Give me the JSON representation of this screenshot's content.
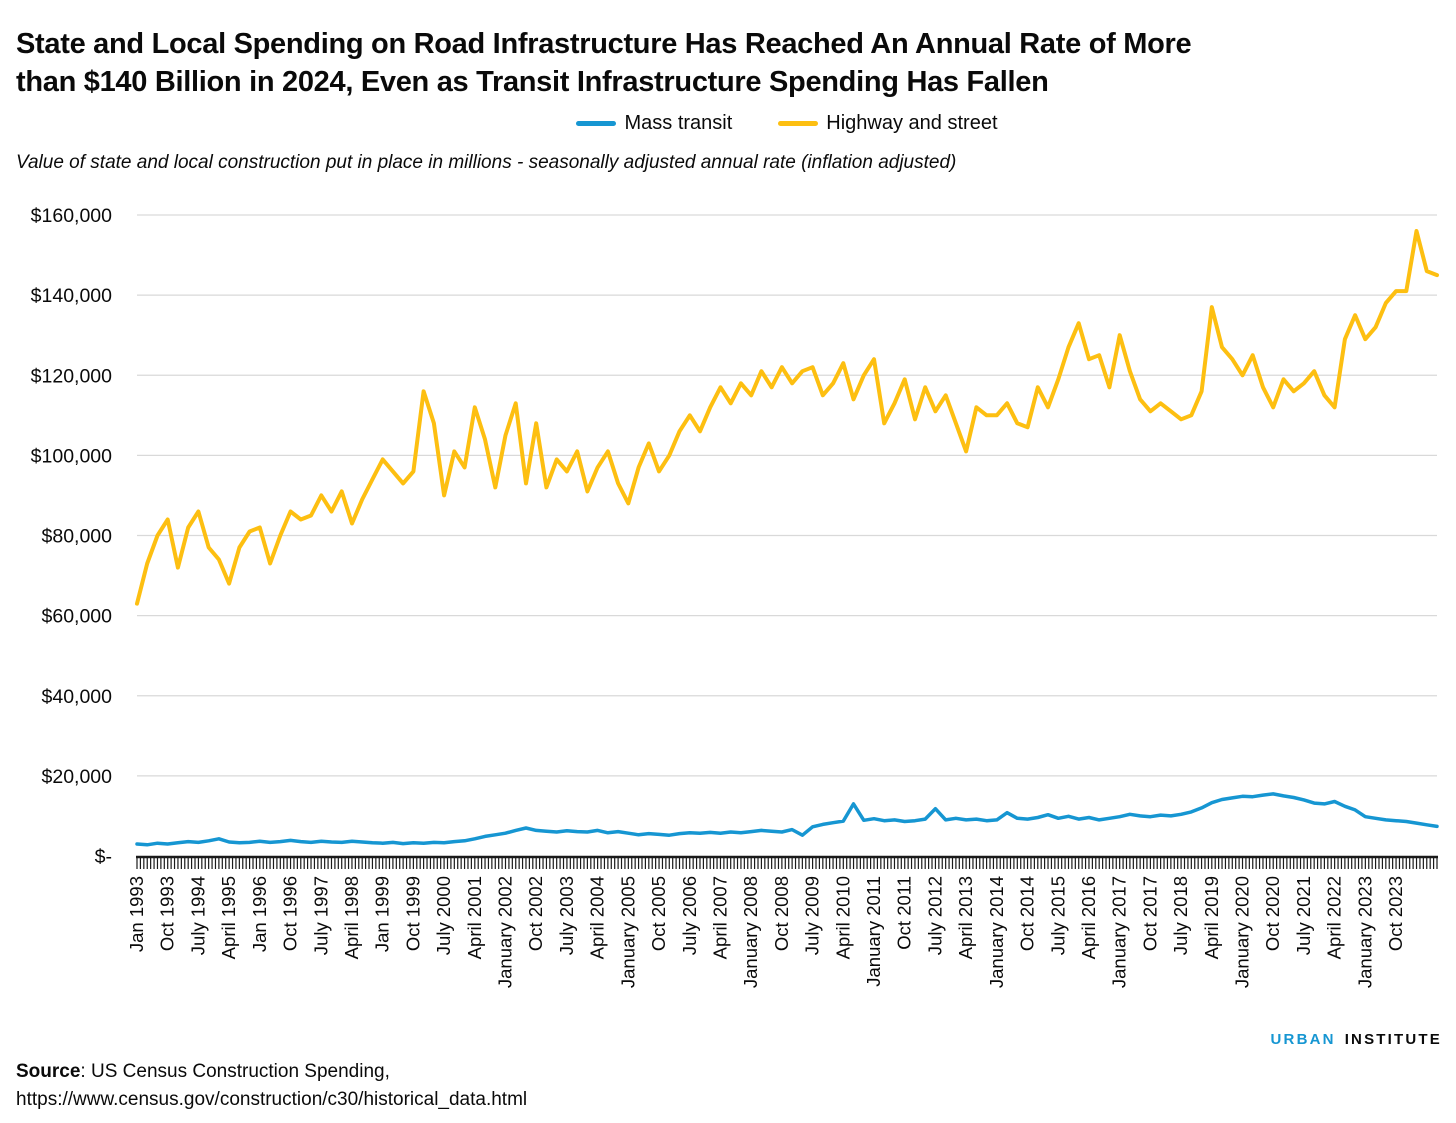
{
  "header": {
    "title_line1": "State and Local Spending on Road Infrastructure Has Reached An Annual Rate of More",
    "title_line2": "than $140 Billion in 2024, Even as Transit Infrastructure Spending Has Fallen",
    "subtitle": "Value of state and local construction put in place in millions - seasonally adjusted annual rate (inflation adjusted)"
  },
  "legend": [
    {
      "label": "Mass transit",
      "color": "#1696d2"
    },
    {
      "label": "Highway and street",
      "color": "#fdbf11"
    }
  ],
  "footer": {
    "source_label": "Source",
    "source_rest": ": US Census Construction Spending,",
    "source_url": "https://www.census.gov/construction/c30/historical_data.html"
  },
  "logo": {
    "word1": "URBAN",
    "word2": "INSTITUTE",
    "color1": "#1696d2",
    "color2": "#0a0a0a"
  },
  "chart_data": {
    "type": "line",
    "title": "State and Local Spending on Road Infrastructure Has Reached An Annual Rate of More than $140 Billion in 2024, Even as Transit Infrastructure Spending Has Fallen",
    "subtitle": "Value of state and local construction put in place in millions - seasonally adjusted annual rate (inflation adjusted)",
    "x_start": "Jan 1993",
    "x_end": "Oct 2024",
    "points_per_year": 4,
    "x_tick_interval_months": 9,
    "grid": "horizontal",
    "legend_position": "top-center",
    "ylim": [
      0,
      160000
    ],
    "y_tick_labels": [
      "$160,000",
      "$140,000",
      "$120,000",
      "$100,000",
      "$80,000",
      "$60,000",
      "$40,000",
      "$20,000",
      "$-"
    ],
    "x_tick_labels": [
      "Jan 1993",
      "Oct 1993",
      "July 1994",
      "April 1995",
      "Jan 1996",
      "Oct 1996",
      "July 1997",
      "April 1998",
      "Jan 1999",
      "Oct 1999",
      "July 2000",
      "April 2001",
      "January 2002",
      "Oct 2002",
      "July 2003",
      "April 2004",
      "January 2005",
      "Oct 2005",
      "July 2006",
      "April 2007",
      "January 2008",
      "Oct 2008",
      "July 2009",
      "April 2010",
      "January 2011",
      "Oct 2011",
      "July 2012",
      "April 2013",
      "January 2014",
      "Oct 2014",
      "July 2015",
      "April 2016",
      "January 2017",
      "Oct 2017",
      "July 2018",
      "April 2019",
      "January 2020",
      "Oct 2020",
      "July 2021",
      "April 2022",
      "January 2023",
      "Oct 2023"
    ],
    "series": [
      {
        "name": "Mass transit",
        "color": "#1696d2",
        "values": [
          3000,
          2800,
          3200,
          3000,
          3300,
          3600,
          3400,
          3800,
          4300,
          3500,
          3300,
          3400,
          3700,
          3400,
          3600,
          3900,
          3600,
          3400,
          3700,
          3500,
          3400,
          3700,
          3500,
          3300,
          3200,
          3400,
          3100,
          3300,
          3200,
          3400,
          3300,
          3600,
          3800,
          4300,
          4900,
          5300,
          5700,
          6400,
          7000,
          6400,
          6200,
          6000,
          6300,
          6100,
          6000,
          6400,
          5800,
          6100,
          5700,
          5300,
          5600,
          5400,
          5200,
          5600,
          5800,
          5700,
          5900,
          5700,
          6000,
          5800,
          6100,
          6400,
          6200,
          6000,
          6600,
          5200,
          7300,
          7900,
          8300,
          8700,
          13000,
          8900,
          9300,
          8800,
          9000,
          8600,
          8800,
          9200,
          11800,
          9000,
          9400,
          9000,
          9200,
          8800,
          9000,
          10800,
          9400,
          9200,
          9600,
          10300,
          9400,
          9900,
          9200,
          9600,
          9000,
          9400,
          9800,
          10400,
          10000,
          9800,
          10200,
          10000,
          10400,
          11000,
          12000,
          13300,
          14100,
          14500,
          14900,
          14800,
          15200,
          15500,
          15000,
          14600,
          14000,
          13200,
          13000,
          13600,
          12400,
          11500,
          9800,
          9400,
          9000,
          8800,
          8600,
          8200,
          7800,
          7400
        ]
      },
      {
        "name": "Highway and street",
        "color": "#fdbf11",
        "values": [
          63000,
          73000,
          80000,
          84000,
          72000,
          82000,
          86000,
          77000,
          74000,
          68000,
          77000,
          81000,
          82000,
          73000,
          80000,
          86000,
          84000,
          85000,
          90000,
          86000,
          91000,
          83000,
          89000,
          94000,
          99000,
          96000,
          93000,
          96000,
          116000,
          108000,
          90000,
          101000,
          97000,
          112000,
          104000,
          92000,
          105000,
          113000,
          93000,
          108000,
          92000,
          99000,
          96000,
          101000,
          91000,
          97000,
          101000,
          93000,
          88000,
          97000,
          103000,
          96000,
          100000,
          106000,
          110000,
          106000,
          112000,
          117000,
          113000,
          118000,
          115000,
          121000,
          117000,
          122000,
          118000,
          121000,
          122000,
          115000,
          118000,
          123000,
          114000,
          120000,
          124000,
          108000,
          113000,
          119000,
          109000,
          117000,
          111000,
          115000,
          108000,
          101000,
          112000,
          110000,
          110000,
          113000,
          108000,
          107000,
          117000,
          112000,
          119000,
          127000,
          133000,
          124000,
          125000,
          117000,
          130000,
          121000,
          114000,
          111000,
          113000,
          111000,
          109000,
          110000,
          116000,
          137000,
          127000,
          124000,
          120000,
          125000,
          117000,
          112000,
          119000,
          116000,
          118000,
          121000,
          115000,
          112000,
          129000,
          135000,
          129000,
          132000,
          138000,
          141000,
          141000,
          156000,
          146000,
          145000
        ]
      }
    ]
  }
}
